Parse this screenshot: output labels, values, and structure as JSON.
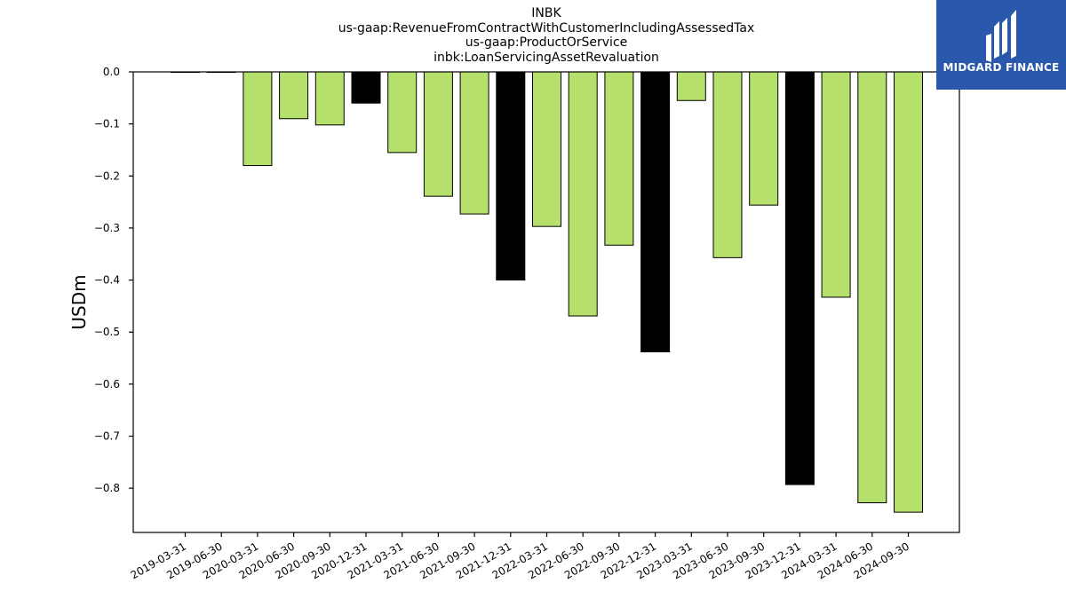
{
  "chart_data": {
    "type": "bar",
    "title_lines": [
      "INBK",
      "us-gaap:RevenueFromContractWithCustomerIncludingAssessedTax",
      "us-gaap:ProductOrService",
      "inbk:LoanServicingAssetRevaluation"
    ],
    "ylabel": "USDm",
    "xlabel": "",
    "ylim": [
      -0.885,
      0.0
    ],
    "yticks": [
      0.0,
      -0.1,
      -0.2,
      -0.3,
      -0.4,
      -0.5,
      -0.6,
      -0.7,
      -0.8
    ],
    "ytick_labels": [
      "0.0",
      "−0.1",
      "−0.2",
      "−0.3",
      "−0.4",
      "−0.5",
      "−0.6",
      "−0.7",
      "−0.8"
    ],
    "categories": [
      "2019-03-31",
      "2019-06-30",
      "2020-03-31",
      "2020-06-30",
      "2020-09-30",
      "2020-12-31",
      "2021-03-31",
      "2021-06-30",
      "2021-09-30",
      "2021-12-31",
      "2022-03-31",
      "2022-06-30",
      "2022-09-30",
      "2022-12-31",
      "2023-03-31",
      "2023-06-30",
      "2023-09-30",
      "2023-12-31",
      "2024-03-31",
      "2024-06-30",
      "2024-09-30"
    ],
    "values": [
      0.0,
      0.0,
      -0.18,
      -0.09,
      -0.102,
      -0.06,
      -0.155,
      -0.239,
      -0.273,
      -0.4,
      -0.297,
      -0.469,
      -0.333,
      -0.538,
      -0.055,
      -0.357,
      -0.256,
      -0.793,
      -0.433,
      -0.828,
      -0.846
    ],
    "bar_colors": [
      "#b5e06b",
      "#b5e06b",
      "#b5e06b",
      "#b5e06b",
      "#b5e06b",
      "#000000",
      "#b5e06b",
      "#b5e06b",
      "#b5e06b",
      "#000000",
      "#b5e06b",
      "#b5e06b",
      "#b5e06b",
      "#000000",
      "#b5e06b",
      "#b5e06b",
      "#b5e06b",
      "#000000",
      "#b5e06b",
      "#b5e06b",
      "#b5e06b"
    ],
    "grid": false,
    "legend": "none"
  },
  "logo": {
    "brand_text": "MIDGARD FINANCE",
    "background": "#2a58ad"
  }
}
